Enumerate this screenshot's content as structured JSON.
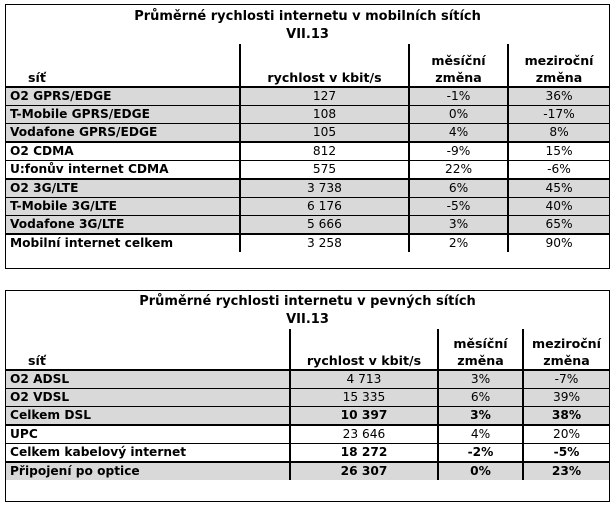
{
  "mobile": {
    "title": "Průměrné rychlosti internetu v mobilních sítích",
    "period": "VII.13",
    "columns": [
      "síť",
      "rychlost v kbit/s",
      "měsíční změna",
      "meziroční změna"
    ],
    "rows": [
      {
        "net": "O2 GPRS/EDGE",
        "speed": "127",
        "monthly": "-1%",
        "yearly": "36%"
      },
      {
        "net": "T-Mobile GPRS/EDGE",
        "speed": "108",
        "monthly": "0%",
        "yearly": "-17%"
      },
      {
        "net": "Vodafone GPRS/EDGE",
        "speed": "105",
        "monthly": "4%",
        "yearly": "8%"
      },
      {
        "net": "O2 CDMA",
        "speed": "812",
        "monthly": "-9%",
        "yearly": "15%"
      },
      {
        "net": "U:fonův internet CDMA",
        "speed": "575",
        "monthly": "22%",
        "yearly": "-6%"
      },
      {
        "net": "O2 3G/LTE",
        "speed": "3 738",
        "monthly": "6%",
        "yearly": "45%"
      },
      {
        "net": "T-Mobile 3G/LTE",
        "speed": "6 176",
        "monthly": "-5%",
        "yearly": "40%"
      },
      {
        "net": "Vodafone 3G/LTE",
        "speed": "5 666",
        "monthly": "3%",
        "yearly": "65%"
      },
      {
        "net": "Mobilní internet celkem",
        "speed": "3 258",
        "monthly": "2%",
        "yearly": "90%"
      }
    ]
  },
  "fixed": {
    "title": "Průměrné rychlosti internetu v pevných sítích",
    "period": "VII.13",
    "columns": [
      "síť",
      "rychlost v kbit/s",
      "měsíční změna",
      "meziroční změna"
    ],
    "rows": [
      {
        "net": "O2 ADSL",
        "speed": "4 713",
        "monthly": "3%",
        "yearly": "-7%"
      },
      {
        "net": "O2 VDSL",
        "speed": "15 335",
        "monthly": "6%",
        "yearly": "39%"
      },
      {
        "net": "Celkem DSL",
        "speed": "10 397",
        "monthly": "3%",
        "yearly": "38%"
      },
      {
        "net": "UPC",
        "speed": "23 646",
        "monthly": "4%",
        "yearly": "20%"
      },
      {
        "net": "Celkem kabelový internet",
        "speed": "18 272",
        "monthly": "-2%",
        "yearly": "-5%"
      },
      {
        "net": "Připojení po optice",
        "speed": "26 307",
        "monthly": "0%",
        "yearly": "23%"
      }
    ]
  }
}
